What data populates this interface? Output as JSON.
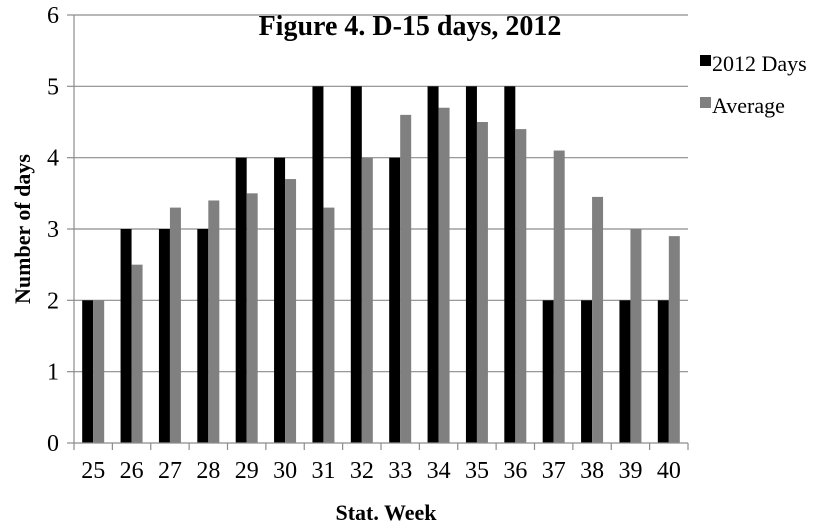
{
  "chart_data": {
    "type": "bar",
    "title": "Figure 4. D-15 days, 2012",
    "xlabel": "Stat. Week",
    "ylabel": "Number of days",
    "categories": [
      "25",
      "26",
      "27",
      "28",
      "29",
      "30",
      "31",
      "32",
      "33",
      "34",
      "35",
      "36",
      "37",
      "38",
      "39",
      "40"
    ],
    "ylim": [
      0,
      6
    ],
    "yticks": [
      0,
      1,
      2,
      3,
      4,
      5,
      6
    ],
    "grid": true,
    "legend_position": "right",
    "series": [
      {
        "name": "2012 Days",
        "color": "#000000",
        "values": [
          2,
          3,
          3,
          3,
          4,
          4,
          5,
          5,
          4,
          5,
          5,
          5,
          2,
          2,
          2,
          2
        ]
      },
      {
        "name": "Average",
        "color": "#808080",
        "values": [
          2,
          2.5,
          3.3,
          3.4,
          3.5,
          3.7,
          3.3,
          4,
          4.6,
          4.7,
          4.5,
          4.4,
          4.1,
          3.45,
          3,
          2.9
        ]
      }
    ]
  }
}
